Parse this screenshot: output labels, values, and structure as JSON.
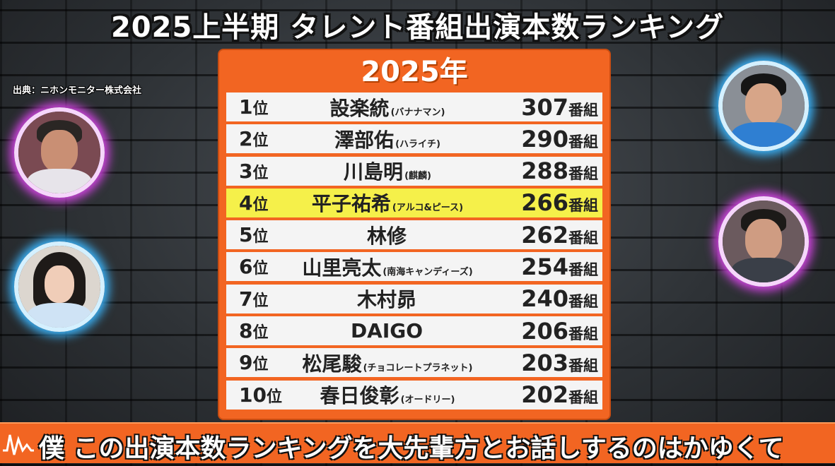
{
  "title": "2025上半期 タレント番組出演本数ランキング",
  "source": "出典：ニホンモニター株式会社",
  "board": {
    "year": "2025年",
    "rows": [
      {
        "rank": "1",
        "rank_suffix": "位",
        "name": "設楽統",
        "group": "(バナナマン)",
        "count": "307",
        "unit": "番組",
        "highlight": false
      },
      {
        "rank": "2",
        "rank_suffix": "位",
        "name": "澤部佑",
        "group": "(ハライチ)",
        "count": "290",
        "unit": "番組",
        "highlight": false
      },
      {
        "rank": "3",
        "rank_suffix": "位",
        "name": "川島明",
        "group": "(麒麟)",
        "count": "288",
        "unit": "番組",
        "highlight": false
      },
      {
        "rank": "4",
        "rank_suffix": "位",
        "name": "平子祐希",
        "group": "(アルコ&ピース)",
        "count": "266",
        "unit": "番組",
        "highlight": true
      },
      {
        "rank": "5",
        "rank_suffix": "位",
        "name": "林修",
        "group": "",
        "count": "262",
        "unit": "番組",
        "highlight": false
      },
      {
        "rank": "6",
        "rank_suffix": "位",
        "name": "山里亮太",
        "group": "(南海キャンディーズ)",
        "count": "254",
        "unit": "番組",
        "highlight": false
      },
      {
        "rank": "7",
        "rank_suffix": "位",
        "name": "木村昴",
        "group": "",
        "count": "240",
        "unit": "番組",
        "highlight": false
      },
      {
        "rank": "8",
        "rank_suffix": "位",
        "name": "DAIGO",
        "group": "",
        "count": "206",
        "unit": "番組",
        "highlight": false
      },
      {
        "rank": "9",
        "rank_suffix": "位",
        "name": "松尾駿",
        "group": "(チョコレートプラネット)",
        "count": "203",
        "unit": "番組",
        "highlight": false
      },
      {
        "rank": "10",
        "rank_suffix": "位",
        "name": "春日俊彰",
        "group": "(オードリー)",
        "count": "202",
        "unit": "番組",
        "highlight": false
      }
    ]
  },
  "subtitle": "僕 この出演本数ランキングを大先輩方とお話しするのはかゆくて",
  "colors": {
    "accent": "#f26522",
    "highlight": "#f5f04a",
    "row": "#f4f4f4",
    "glow_pink": "#d845e8",
    "glow_blue": "#3bb7ff"
  }
}
